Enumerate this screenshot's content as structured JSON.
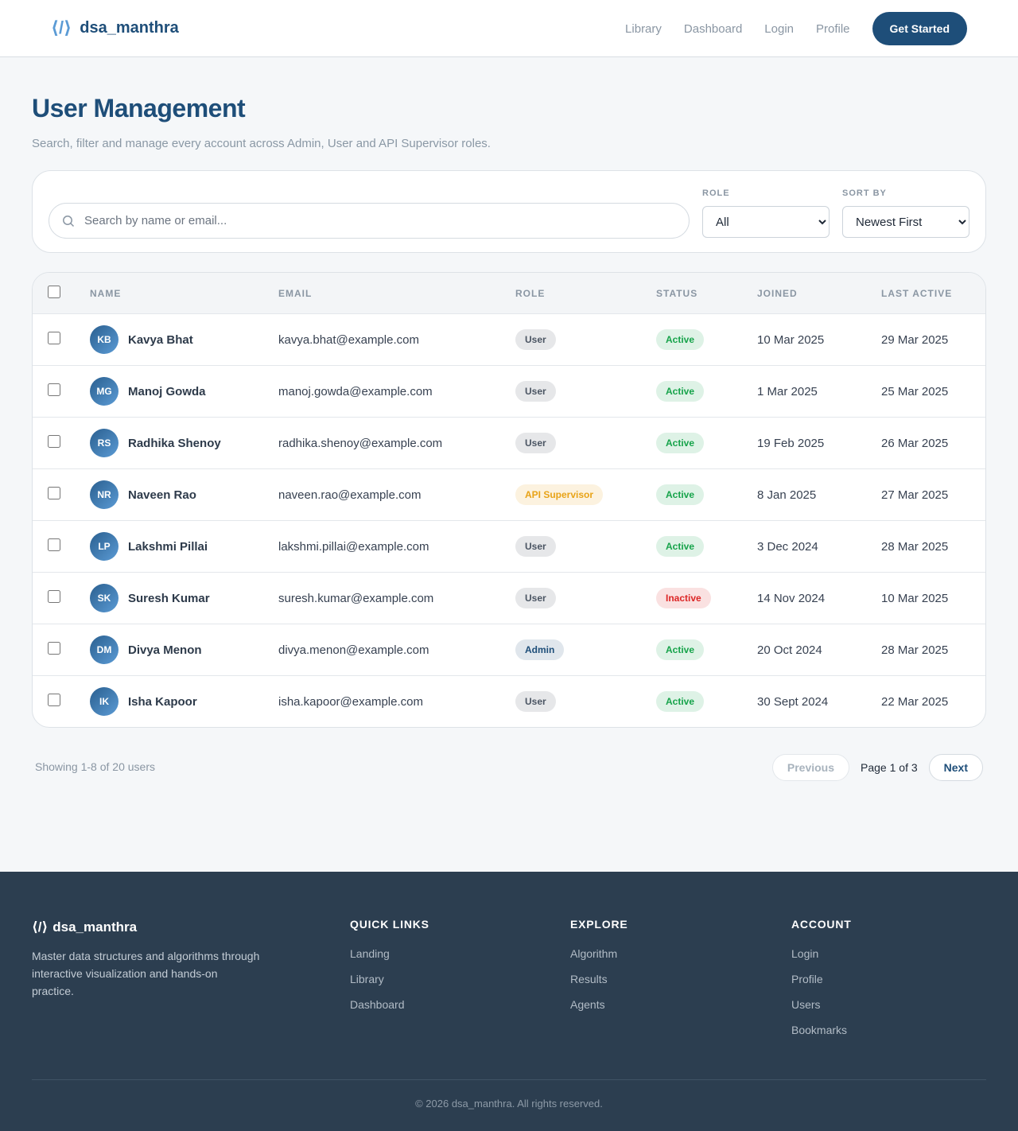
{
  "nav": {
    "logo_mark": "⟨/⟩",
    "brand": "dsa_manthra",
    "links": [
      "Library",
      "Dashboard",
      "Login",
      "Profile"
    ],
    "cta": "Get Started"
  },
  "header": {
    "title": "User Management",
    "subtitle": "Search, filter and manage every account across Admin, User and API Supervisor roles."
  },
  "filters": {
    "search_placeholder": "Search by name or email...",
    "role_label": "ROLE",
    "role_value": "All",
    "sort_label": "SORT BY",
    "sort_value": "Newest First"
  },
  "table": {
    "columns": [
      "NAME",
      "EMAIL",
      "ROLE",
      "STATUS",
      "JOINED",
      "LAST ACTIVE"
    ],
    "rows": [
      {
        "initials": "KB",
        "name": "Kavya Bhat",
        "email": "kavya.bhat@example.com",
        "role": "User",
        "role_color": "#4b5563",
        "status": "Active",
        "status_color": "#16a34a",
        "joined": "10 Mar 2025",
        "last_active": "29 Mar 2025"
      },
      {
        "initials": "MG",
        "name": "Manoj Gowda",
        "email": "manoj.gowda@example.com",
        "role": "User",
        "role_color": "#4b5563",
        "status": "Active",
        "status_color": "#16a34a",
        "joined": "1 Mar 2025",
        "last_active": "25 Mar 2025"
      },
      {
        "initials": "RS",
        "name": "Radhika Shenoy",
        "email": "radhika.shenoy@example.com",
        "role": "User",
        "role_color": "#4b5563",
        "status": "Active",
        "status_color": "#16a34a",
        "joined": "19 Feb 2025",
        "last_active": "26 Mar 2025"
      },
      {
        "initials": "NR",
        "name": "Naveen Rao",
        "email": "naveen.rao@example.com",
        "role": "API Supervisor",
        "role_color": "#e8a317",
        "status": "Active",
        "status_color": "#16a34a",
        "joined": "8 Jan 2025",
        "last_active": "27 Mar 2025"
      },
      {
        "initials": "LP",
        "name": "Lakshmi Pillai",
        "email": "lakshmi.pillai@example.com",
        "role": "User",
        "role_color": "#4b5563",
        "status": "Active",
        "status_color": "#16a34a",
        "joined": "3 Dec 2024",
        "last_active": "28 Mar 2025"
      },
      {
        "initials": "SK",
        "name": "Suresh Kumar",
        "email": "suresh.kumar@example.com",
        "role": "User",
        "role_color": "#4b5563",
        "status": "Inactive",
        "status_color": "#dc2626",
        "joined": "14 Nov 2024",
        "last_active": "10 Mar 2025"
      },
      {
        "initials": "DM",
        "name": "Divya Menon",
        "email": "divya.menon@example.com",
        "role": "Admin",
        "role_color": "#1e4e79",
        "status": "Active",
        "status_color": "#16a34a",
        "joined": "20 Oct 2024",
        "last_active": "28 Mar 2025"
      },
      {
        "initials": "IK",
        "name": "Isha Kapoor",
        "email": "isha.kapoor@example.com",
        "role": "User",
        "role_color": "#4b5563",
        "status": "Active",
        "status_color": "#16a34a",
        "joined": "30 Sept 2024",
        "last_active": "22 Mar 2025"
      }
    ]
  },
  "pagination": {
    "summary": "Showing 1-8 of 20 users",
    "previous": "Previous",
    "page": "Page 1 of 3",
    "next": "Next"
  },
  "footer": {
    "brand": "dsa_manthra",
    "tagline": "Master data structures and algorithms through interactive visualization and hands-on practice.",
    "columns": [
      {
        "heading": "QUICK LINKS",
        "links": [
          "Landing",
          "Library",
          "Dashboard"
        ]
      },
      {
        "heading": "EXPLORE",
        "links": [
          "Algorithm",
          "Results",
          "Agents"
        ]
      },
      {
        "heading": "ACCOUNT",
        "links": [
          "Login",
          "Profile",
          "Users",
          "Bookmarks"
        ]
      }
    ],
    "copyright": "© 2026 dsa_manthra. All rights reserved."
  }
}
